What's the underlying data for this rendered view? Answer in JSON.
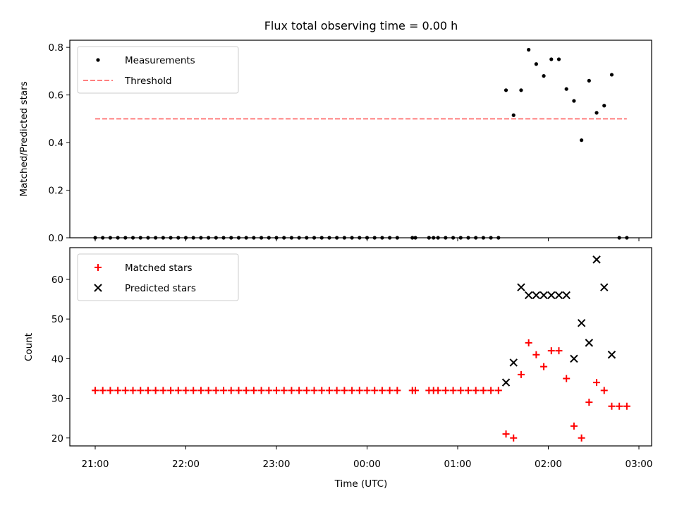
{
  "chart_data": [
    {
      "type": "scatter",
      "title": "Flux total observing time = 0.00 h",
      "xlabel": "",
      "ylabel": "Matched/Predicted stars",
      "ylim": [
        0,
        0.83
      ],
      "yticks": [
        "0.0",
        "0.2",
        "0.4",
        "0.6",
        "0.8"
      ],
      "legend_position": "top-left",
      "series": [
        {
          "name": "Measurements",
          "marker": "dot",
          "color": "#000000",
          "points": [
            [
              "21:00",
              0
            ],
            [
              "21:05",
              0
            ],
            [
              "21:10",
              0
            ],
            [
              "21:15",
              0
            ],
            [
              "21:20",
              0
            ],
            [
              "21:25",
              0
            ],
            [
              "21:30",
              0
            ],
            [
              "21:35",
              0
            ],
            [
              "21:40",
              0
            ],
            [
              "21:45",
              0
            ],
            [
              "21:50",
              0
            ],
            [
              "21:55",
              0
            ],
            [
              "22:00",
              0
            ],
            [
              "22:05",
              0
            ],
            [
              "22:10",
              0
            ],
            [
              "22:15",
              0
            ],
            [
              "22:20",
              0
            ],
            [
              "22:25",
              0
            ],
            [
              "22:30",
              0
            ],
            [
              "22:35",
              0
            ],
            [
              "22:40",
              0
            ],
            [
              "22:45",
              0
            ],
            [
              "22:50",
              0
            ],
            [
              "22:55",
              0
            ],
            [
              "23:00",
              0
            ],
            [
              "23:05",
              0
            ],
            [
              "23:10",
              0
            ],
            [
              "23:15",
              0
            ],
            [
              "23:20",
              0
            ],
            [
              "23:25",
              0
            ],
            [
              "23:30",
              0
            ],
            [
              "23:35",
              0
            ],
            [
              "23:40",
              0
            ],
            [
              "23:45",
              0
            ],
            [
              "23:50",
              0
            ],
            [
              "23:55",
              0
            ],
            [
              "00:00",
              0
            ],
            [
              "00:05",
              0
            ],
            [
              "00:10",
              0
            ],
            [
              "00:15",
              0
            ],
            [
              "00:20",
              0
            ],
            [
              "00:30",
              0
            ],
            [
              "00:32",
              0
            ],
            [
              "00:41",
              0
            ],
            [
              "00:44",
              0
            ],
            [
              "00:47",
              0
            ],
            [
              "00:52",
              0
            ],
            [
              "00:57",
              0
            ],
            [
              "01:02",
              0
            ],
            [
              "01:07",
              0
            ],
            [
              "01:12",
              0
            ],
            [
              "01:17",
              0
            ],
            [
              "01:22",
              0
            ],
            [
              "01:27",
              0
            ],
            [
              "01:32",
              0.62
            ],
            [
              "01:37",
              0.515
            ],
            [
              "01:42",
              0.62
            ],
            [
              "01:47",
              0.79
            ],
            [
              "01:52",
              0.73
            ],
            [
              "01:57",
              0.68
            ],
            [
              "02:02",
              0.75
            ],
            [
              "02:07",
              0.75
            ],
            [
              "02:12",
              0.625
            ],
            [
              "02:17",
              0.575
            ],
            [
              "02:22",
              0.41
            ],
            [
              "02:27",
              0.66
            ],
            [
              "02:32",
              0.525
            ],
            [
              "02:37",
              0.555
            ],
            [
              "02:42",
              0.685
            ],
            [
              "02:47",
              0
            ],
            [
              "02:52",
              0
            ]
          ]
        },
        {
          "name": "Threshold",
          "line": "dashed",
          "color": "#ff7f7f",
          "points": [
            [
              "21:00",
              0.5
            ],
            [
              "02:52",
              0.5
            ]
          ]
        }
      ]
    },
    {
      "type": "scatter",
      "title": "",
      "xlabel": "Time (UTC)",
      "ylabel": "Count",
      "ylim": [
        18,
        68
      ],
      "yticks": [
        "20",
        "30",
        "40",
        "50",
        "60"
      ],
      "xticks": [
        "21:00",
        "22:00",
        "23:00",
        "00:00",
        "01:00",
        "02:00",
        "03:00"
      ],
      "legend_position": "top-left",
      "series": [
        {
          "name": "Matched stars",
          "marker": "plus",
          "color": "#ff0000",
          "points": [
            [
              "21:00",
              32
            ],
            [
              "21:05",
              32
            ],
            [
              "21:10",
              32
            ],
            [
              "21:15",
              32
            ],
            [
              "21:20",
              32
            ],
            [
              "21:25",
              32
            ],
            [
              "21:30",
              32
            ],
            [
              "21:35",
              32
            ],
            [
              "21:40",
              32
            ],
            [
              "21:45",
              32
            ],
            [
              "21:50",
              32
            ],
            [
              "21:55",
              32
            ],
            [
              "22:00",
              32
            ],
            [
              "22:05",
              32
            ],
            [
              "22:10",
              32
            ],
            [
              "22:15",
              32
            ],
            [
              "22:20",
              32
            ],
            [
              "22:25",
              32
            ],
            [
              "22:30",
              32
            ],
            [
              "22:35",
              32
            ],
            [
              "22:40",
              32
            ],
            [
              "22:45",
              32
            ],
            [
              "22:50",
              32
            ],
            [
              "22:55",
              32
            ],
            [
              "23:00",
              32
            ],
            [
              "23:05",
              32
            ],
            [
              "23:10",
              32
            ],
            [
              "23:15",
              32
            ],
            [
              "23:20",
              32
            ],
            [
              "23:25",
              32
            ],
            [
              "23:30",
              32
            ],
            [
              "23:35",
              32
            ],
            [
              "23:40",
              32
            ],
            [
              "23:45",
              32
            ],
            [
              "23:50",
              32
            ],
            [
              "23:55",
              32
            ],
            [
              "00:00",
              32
            ],
            [
              "00:05",
              32
            ],
            [
              "00:10",
              32
            ],
            [
              "00:15",
              32
            ],
            [
              "00:20",
              32
            ],
            [
              "00:30",
              32
            ],
            [
              "00:32",
              32
            ],
            [
              "00:41",
              32
            ],
            [
              "00:44",
              32
            ],
            [
              "00:47",
              32
            ],
            [
              "00:52",
              32
            ],
            [
              "00:57",
              32
            ],
            [
              "01:02",
              32
            ],
            [
              "01:07",
              32
            ],
            [
              "01:12",
              32
            ],
            [
              "01:17",
              32
            ],
            [
              "01:22",
              32
            ],
            [
              "01:27",
              32
            ],
            [
              "01:32",
              21
            ],
            [
              "01:37",
              20
            ],
            [
              "01:42",
              36
            ],
            [
              "01:47",
              44
            ],
            [
              "01:52",
              41
            ],
            [
              "01:57",
              38
            ],
            [
              "02:02",
              42
            ],
            [
              "02:07",
              42
            ],
            [
              "02:12",
              35
            ],
            [
              "02:17",
              23
            ],
            [
              "02:22",
              20
            ],
            [
              "02:27",
              29
            ],
            [
              "02:32",
              34
            ],
            [
              "02:37",
              32
            ],
            [
              "02:42",
              28
            ],
            [
              "02:47",
              28
            ],
            [
              "02:52",
              28
            ]
          ]
        },
        {
          "name": "Predicted stars",
          "marker": "x",
          "color": "#000000",
          "points": [
            [
              "01:32",
              34
            ],
            [
              "01:37",
              39
            ],
            [
              "01:42",
              58
            ],
            [
              "01:47",
              56
            ],
            [
              "01:52",
              56
            ],
            [
              "01:57",
              56
            ],
            [
              "02:02",
              56
            ],
            [
              "02:07",
              56
            ],
            [
              "02:12",
              56
            ],
            [
              "02:17",
              40
            ],
            [
              "02:22",
              49
            ],
            [
              "02:27",
              44
            ],
            [
              "02:32",
              65
            ],
            [
              "02:37",
              58
            ],
            [
              "02:42",
              41
            ]
          ]
        }
      ]
    }
  ]
}
